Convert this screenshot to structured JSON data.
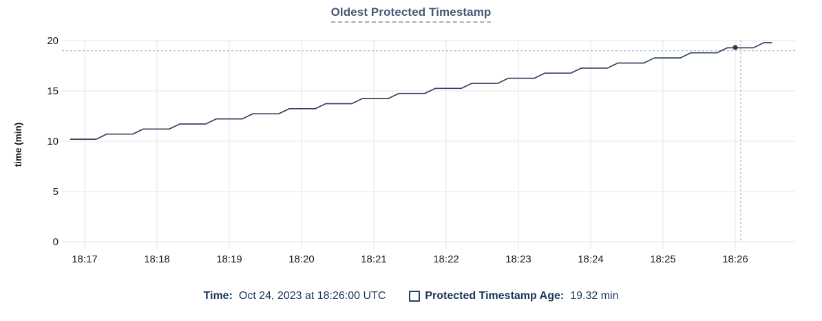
{
  "chart": {
    "title": "Oldest Protected Timestamp"
  },
  "colors": {
    "title": "#475872",
    "title_underline": "#a2b1c3",
    "series_line": "#35455f",
    "hover_dot": "#2c3c56",
    "crosshair": "#a9bac7",
    "gridline": "#ededed",
    "tick_text": "#1a1a1a",
    "axis_title_text": "#111111",
    "legend_text": "#17355a"
  },
  "chart_data": {
    "type": "line",
    "title": "Oldest Protected Timestamp",
    "xlabel": "",
    "ylabel": "time (min)",
    "x_ticks": [
      "18:17",
      "18:18",
      "18:19",
      "18:20",
      "18:21",
      "18:22",
      "18:23",
      "18:24",
      "18:25",
      "18:26"
    ],
    "y_ticks": [
      0,
      5,
      10,
      15,
      20
    ],
    "ylim": [
      0,
      20
    ],
    "grid": true,
    "legend_position": "bottom",
    "series": [
      {
        "name": "Protected Timestamp Age",
        "unit": "min",
        "points_t_min_after_1817": [
          [
            -0.2,
            10.2
          ],
          [
            0.16,
            10.2
          ],
          [
            0.305,
            10.705
          ],
          [
            0.665,
            10.705
          ],
          [
            0.81,
            11.21
          ],
          [
            1.17,
            11.21
          ],
          [
            1.315,
            11.715
          ],
          [
            1.675,
            11.715
          ],
          [
            1.82,
            12.22
          ],
          [
            2.18,
            12.22
          ],
          [
            2.325,
            12.725
          ],
          [
            2.685,
            12.725
          ],
          [
            2.83,
            13.23
          ],
          [
            3.19,
            13.23
          ],
          [
            3.335,
            13.735
          ],
          [
            3.695,
            13.735
          ],
          [
            3.84,
            14.24
          ],
          [
            4.2,
            14.24
          ],
          [
            4.345,
            14.745
          ],
          [
            4.705,
            14.745
          ],
          [
            4.85,
            15.25
          ],
          [
            5.21,
            15.25
          ],
          [
            5.355,
            15.755
          ],
          [
            5.715,
            15.755
          ],
          [
            5.86,
            16.26
          ],
          [
            6.22,
            16.26
          ],
          [
            6.365,
            16.765
          ],
          [
            6.725,
            16.765
          ],
          [
            6.87,
            17.27
          ],
          [
            7.23,
            17.27
          ],
          [
            7.375,
            17.775
          ],
          [
            7.735,
            17.775
          ],
          [
            7.88,
            18.28
          ],
          [
            8.24,
            18.28
          ],
          [
            8.385,
            18.785
          ],
          [
            8.745,
            18.785
          ],
          [
            8.89,
            19.29
          ],
          [
            9.25,
            19.29
          ],
          [
            9.395,
            19.795
          ],
          [
            9.51,
            19.795
          ]
        ]
      }
    ],
    "hover_point": {
      "time": "18:26:00",
      "t_min": 9.0,
      "value": 19.32
    },
    "crosshair": {
      "t_min": 9.076,
      "value": 19.0
    }
  },
  "legend": {
    "time_label": "Time:",
    "time_value": "Oct 24, 2023 at 18:26:00 UTC",
    "series_label": "Protected Timestamp Age:",
    "series_value": "19.32 min"
  }
}
